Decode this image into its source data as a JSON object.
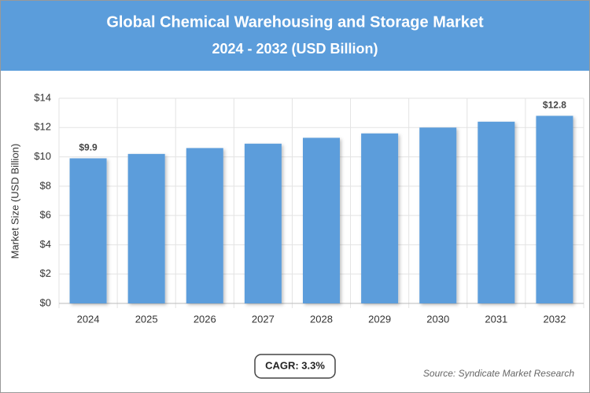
{
  "chart_data": {
    "type": "bar",
    "title": "Global Chemical Warehousing and Storage Market",
    "subtitle": "2024 - 2032 (USD Billion)",
    "y_label": "Market Size (USD Billion)",
    "categories": [
      "2024",
      "2025",
      "2026",
      "2027",
      "2028",
      "2029",
      "2030",
      "2031",
      "2032"
    ],
    "values": [
      9.9,
      10.2,
      10.6,
      10.9,
      11.3,
      11.6,
      12.0,
      12.4,
      12.8
    ],
    "value_labels": [
      "$9.9",
      null,
      null,
      null,
      null,
      null,
      null,
      null,
      "$12.8"
    ],
    "color": "#5b9ddb",
    "ylim": [
      0,
      14
    ],
    "yticks": [
      {
        "value": 0,
        "label": "$0"
      },
      {
        "value": 2,
        "label": "$2"
      },
      {
        "value": 4,
        "label": "$4"
      },
      {
        "value": 6,
        "label": "$6"
      },
      {
        "value": 8,
        "label": "$8"
      },
      {
        "value": 10,
        "label": "$10"
      },
      {
        "value": 12,
        "label": "$12"
      },
      {
        "value": 14,
        "label": "$14"
      }
    ],
    "grid": true,
    "cagr": "CAGR: 3.3%",
    "source": "Source: Syndicate Market Research"
  }
}
